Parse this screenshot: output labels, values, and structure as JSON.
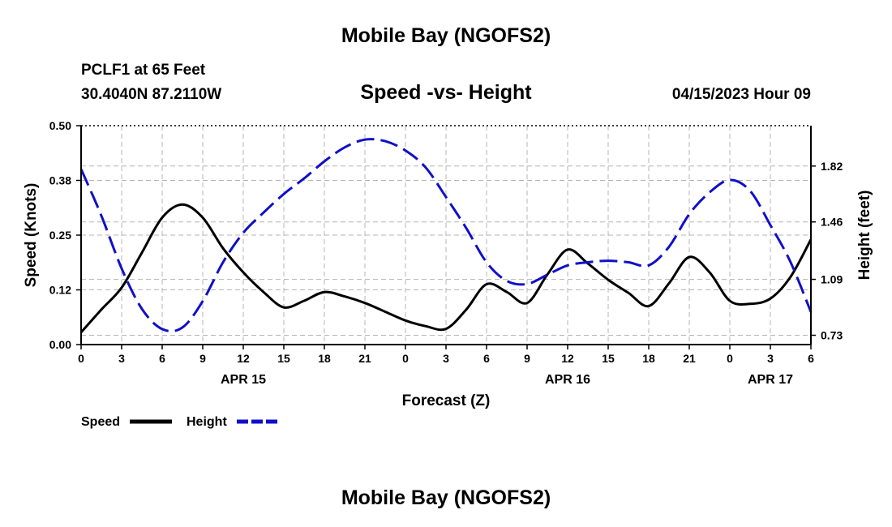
{
  "header": {
    "title": "Mobile Bay (NGOFS2)",
    "station": "PCLF1 at 65 Feet",
    "coords": "30.4040N  87.2110W",
    "subtitle": "Speed -vs- Height",
    "datetime": "04/15/2023 Hour 09"
  },
  "footer": {
    "title": "Mobile Bay (NGOFS2)"
  },
  "chart_data": {
    "type": "line",
    "xlabel": "Forecast (Z)",
    "ylabel": "Speed (Knots)",
    "y2label": "Height (feet)",
    "xlim": [
      0,
      54
    ],
    "ylim": [
      0,
      0.5
    ],
    "y2lim": [
      0.67,
      2.08
    ],
    "x_ticks": [
      0,
      3,
      6,
      9,
      12,
      15,
      18,
      21,
      24,
      27,
      30,
      33,
      36,
      39,
      42,
      45,
      48,
      51,
      54
    ],
    "x_tick_labels": [
      "0",
      "3",
      "6",
      "9",
      "12",
      "15",
      "18",
      "21",
      "0",
      "3",
      "6",
      "9",
      "12",
      "15",
      "18",
      "21",
      "0",
      "3",
      "6"
    ],
    "y_ticks": [
      0.0,
      0.125,
      0.25,
      0.375,
      0.5
    ],
    "y_tick_labels": [
      "0.00",
      "0.12",
      "0.25",
      "0.38",
      "0.50"
    ],
    "y2_ticks": [
      0.73,
      1.09,
      1.46,
      1.82
    ],
    "y2_tick_labels": [
      "0.73",
      "1.09",
      "1.46",
      "1.82"
    ],
    "day_labels": [
      {
        "x": 12,
        "label": "APR 15"
      },
      {
        "x": 36,
        "label": "APR 16"
      },
      {
        "x": 51,
        "label": "APR 17"
      }
    ],
    "grid": true,
    "legend_position": "bottom-left",
    "series": [
      {
        "name": "Speed",
        "axis": "left",
        "color": "#000000",
        "style": "solid",
        "x": [
          0,
          1.5,
          3,
          4.5,
          6,
          7.5,
          9,
          10.5,
          12,
          13.5,
          15,
          16.5,
          18,
          19.5,
          21,
          22.5,
          24,
          25.5,
          27,
          28.5,
          30,
          31.5,
          33,
          34.5,
          36,
          37.5,
          39,
          40.5,
          42,
          43.5,
          45,
          46.5,
          48,
          49.5,
          51,
          52.5,
          54
        ],
        "values": [
          0.028,
          0.08,
          0.13,
          0.21,
          0.29,
          0.32,
          0.29,
          0.22,
          0.165,
          0.12,
          0.085,
          0.1,
          0.12,
          0.11,
          0.095,
          0.075,
          0.055,
          0.042,
          0.036,
          0.08,
          0.138,
          0.12,
          0.095,
          0.16,
          0.217,
          0.185,
          0.148,
          0.118,
          0.088,
          0.14,
          0.2,
          0.165,
          0.1,
          0.093,
          0.105,
          0.155,
          0.24
        ]
      },
      {
        "name": "Height",
        "axis": "right",
        "color": "#1010c8",
        "style": "dashed",
        "x": [
          0,
          1.5,
          3,
          4.5,
          6,
          7.5,
          9,
          10.5,
          12,
          13.5,
          15,
          16.5,
          18,
          19.5,
          21,
          22.5,
          24,
          25.5,
          27,
          28.5,
          30,
          31.5,
          33,
          34.5,
          36,
          37.5,
          39,
          40.5,
          42,
          43.5,
          45,
          46.5,
          48,
          49.5,
          51,
          52.5,
          54
        ],
        "values": [
          1.8,
          1.5,
          1.16,
          0.9,
          0.77,
          0.78,
          0.95,
          1.2,
          1.39,
          1.52,
          1.64,
          1.74,
          1.85,
          1.94,
          1.99,
          1.98,
          1.92,
          1.81,
          1.62,
          1.42,
          1.2,
          1.08,
          1.06,
          1.12,
          1.18,
          1.2,
          1.21,
          1.2,
          1.18,
          1.3,
          1.51,
          1.65,
          1.73,
          1.66,
          1.44,
          1.2,
          0.88
        ]
      }
    ]
  }
}
